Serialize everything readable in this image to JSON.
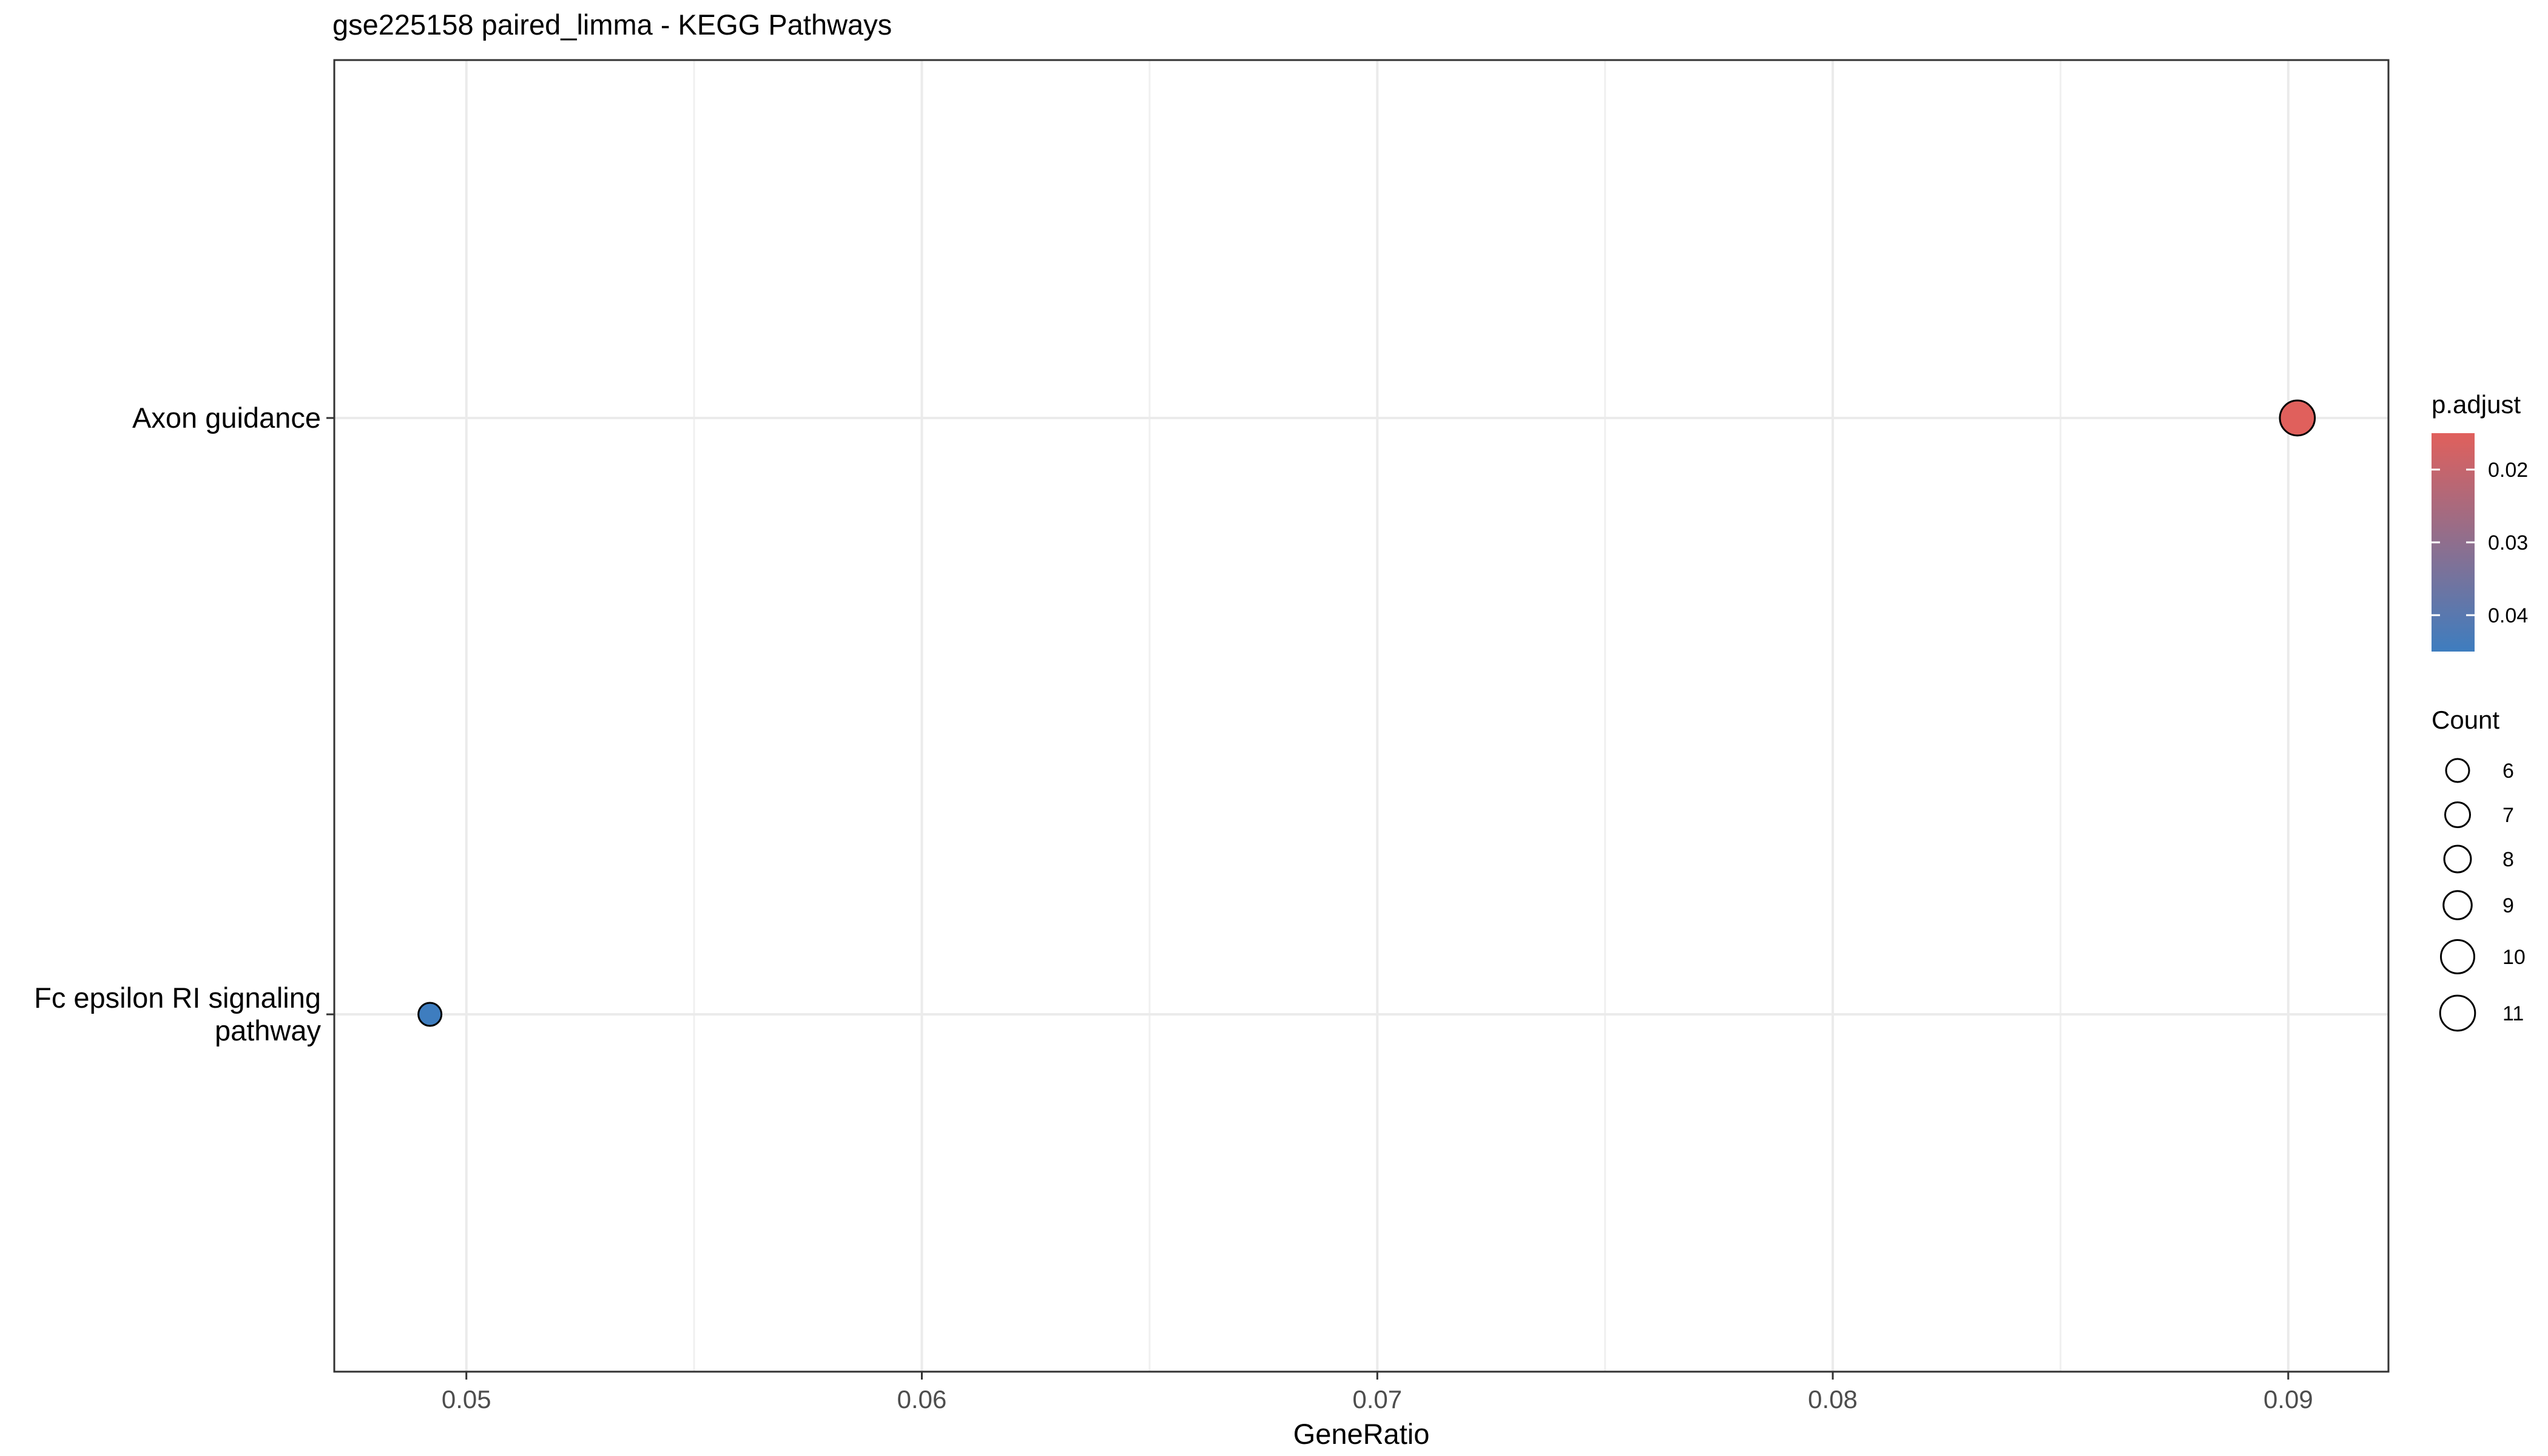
{
  "chart_data": {
    "type": "scatter",
    "title": "gse225158 paired_limma - KEGG Pathways",
    "xlabel": "GeneRatio",
    "ylabel": "",
    "xlim": [
      0.0471,
      0.0922
    ],
    "x_ticks": [
      0.05,
      0.06,
      0.07,
      0.08,
      0.09
    ],
    "x_tick_labels": [
      "0.05",
      "0.06",
      "0.07",
      "0.08",
      "0.09"
    ],
    "categories": [
      {
        "label_lines": [
          "Fc epsilon RI signaling",
          "pathway"
        ]
      },
      {
        "label_lines": [
          "Axon guidance"
        ]
      }
    ],
    "points": [
      {
        "category": 0,
        "x": 0.0492,
        "count": 6,
        "p_adjust": 0.045
      },
      {
        "category": 1,
        "x": 0.0902,
        "count": 11,
        "p_adjust": 0.015
      }
    ],
    "grid": true,
    "color_legend": {
      "title": "p.adjust",
      "range": [
        0.015,
        0.045
      ],
      "low_color": "#e0605c",
      "high_color": "#3e7dbf",
      "ticks": [
        0.02,
        0.03,
        0.04
      ],
      "tick_labels": [
        "0.02",
        "0.03",
        "0.04"
      ]
    },
    "size_legend": {
      "title": "Count",
      "values": [
        6,
        7,
        8,
        9,
        10,
        11
      ],
      "labels": [
        "6",
        "7",
        "8",
        "9",
        "10",
        "11"
      ]
    },
    "legend_position": "right"
  }
}
